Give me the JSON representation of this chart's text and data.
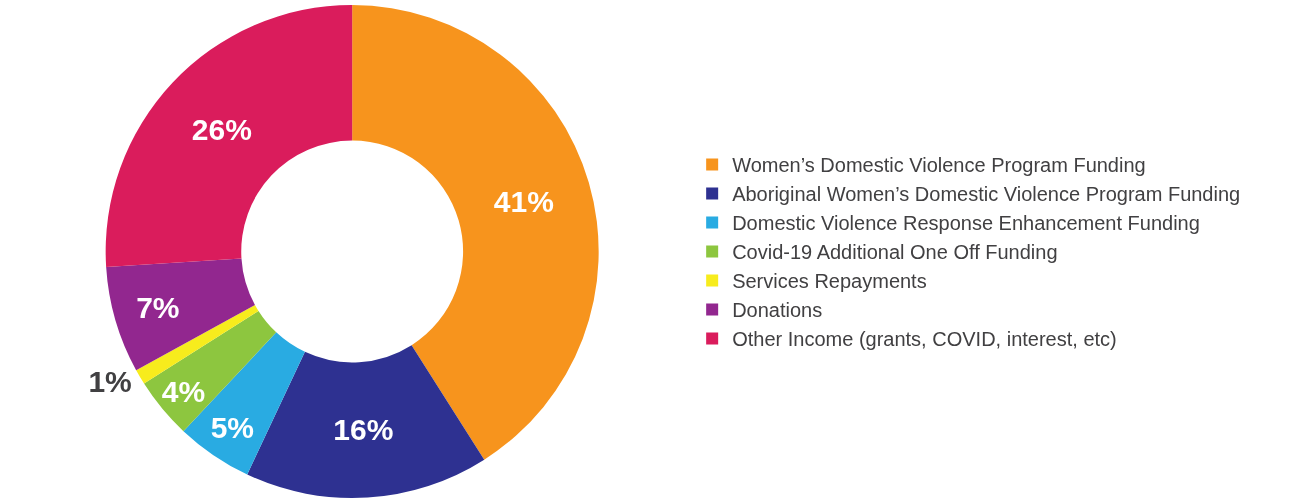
{
  "chart_data": {
    "type": "donut",
    "categories": [
      "Women’s Domestic Violence Program Funding",
      "Aboriginal Women’s Domestic Violence Program Funding",
      "Domestic Violence Response Enhancement Funding",
      "Covid-19 Additional One Off Funding",
      "Services Repayments",
      "Donations",
      "Other Income (grants, COVID, interest, etc)"
    ],
    "values": [
      41,
      16,
      5,
      4,
      1,
      7,
      26
    ],
    "colors": [
      "#f7941d",
      "#2e3191",
      "#29abe2",
      "#8dc63f",
      "#f7ec1d",
      "#92278f",
      "#da1c5c"
    ],
    "value_labels": [
      "41%",
      "16%",
      "5%",
      "4%",
      "1%",
      "7%",
      "26%"
    ],
    "legend": "right"
  }
}
